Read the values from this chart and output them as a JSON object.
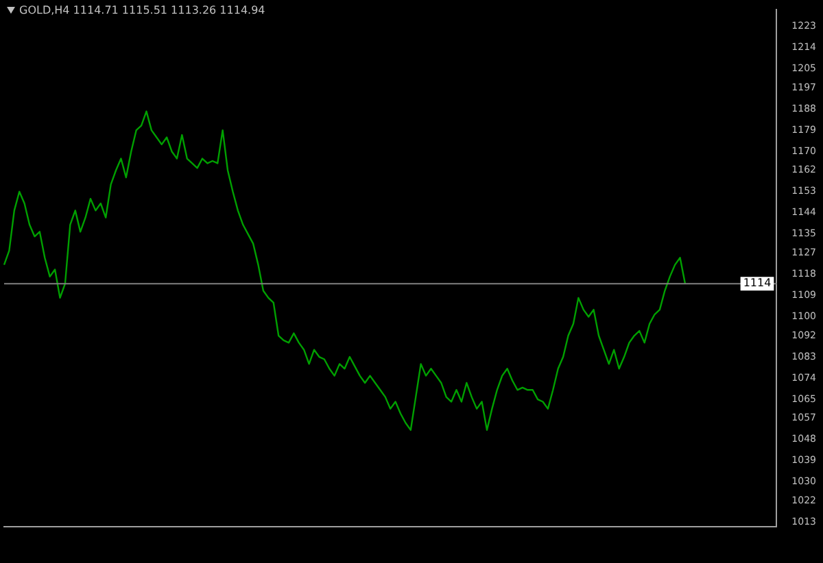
{
  "chart_data": {
    "type": "line",
    "title": "GOLD,H4 1114.71 1115.51 1113.26 1114.94",
    "categories": [
      null,
      null,
      null,
      null,
      null,
      null,
      null,
      null,
      null,
      null,
      null,
      null,
      null,
      null,
      null,
      null,
      null,
      null,
      null,
      null,
      null,
      null,
      null,
      null,
      null,
      null,
      null,
      null,
      null,
      null,
      null,
      null,
      null,
      null,
      null,
      null,
      null,
      null,
      null,
      null,
      null,
      null,
      null,
      null,
      null,
      null,
      null,
      null,
      null,
      null,
      null,
      null,
      null,
      null,
      null,
      null,
      null,
      null,
      null,
      null,
      null,
      null,
      null,
      null,
      null,
      null,
      null,
      null,
      null,
      null,
      null,
      null,
      null,
      null,
      null,
      null,
      null,
      null,
      null,
      null,
      null,
      null,
      null,
      null,
      null,
      null,
      null,
      null,
      null,
      null,
      null,
      null,
      null,
      null,
      null,
      null,
      null,
      null,
      null,
      null,
      null,
      null,
      null,
      null,
      null,
      null,
      null,
      null,
      null,
      null,
      null,
      null,
      null,
      null,
      null,
      null,
      null,
      null,
      null,
      null,
      null,
      null,
      null,
      null,
      null,
      null,
      null,
      null,
      null,
      null,
      null,
      null,
      null,
      null,
      null,
      null,
      null,
      null,
      null,
      null,
      null,
      null,
      null,
      null,
      null,
      null,
      null,
      null,
      null,
      null,
      null,
      null,
      null
    ],
    "series": [
      {
        "color": "#00a000",
        "values": [
          1122,
          1128,
          1145,
          1153,
          1148,
          1139,
          1134,
          1136,
          1125,
          1117,
          1120,
          1108,
          1114,
          1139,
          1145,
          1136,
          1142,
          1150,
          1145,
          1148,
          1142,
          1156,
          1162,
          1167,
          1159,
          1170,
          1179,
          1181,
          1187,
          1179,
          1176,
          1173,
          1176,
          1170,
          1167,
          1177,
          1167,
          1165,
          1163,
          1167,
          1165,
          1166,
          1165,
          1179,
          1162,
          1153,
          1145,
          1139,
          1135,
          1131,
          1122,
          1111,
          1108,
          1106,
          1092,
          1090,
          1089,
          1093,
          1089,
          1086,
          1080,
          1086,
          1083,
          1082,
          1078,
          1075,
          1080,
          1078,
          1083,
          1079,
          1075,
          1072,
          1075,
          1072,
          1069,
          1066,
          1061,
          1064,
          1059,
          1055,
          1052,
          1066,
          1080,
          1075,
          1078,
          1075,
          1072,
          1066,
          1064,
          1069,
          1064,
          1072,
          1066,
          1061,
          1064,
          1052,
          1061,
          1069,
          1075,
          1078,
          1073,
          1069,
          1070,
          1069,
          1069,
          1065,
          1064,
          1061,
          1069,
          1078,
          1083,
          1092,
          1097,
          1108,
          1103,
          1100,
          1103,
          1092,
          1086,
          1080,
          1086,
          1078,
          1083,
          1089,
          1092,
          1094,
          1089,
          1097,
          1101,
          1103,
          1111,
          1117,
          1122,
          1125,
          1114,
          null,
          null,
          null,
          null,
          null,
          null,
          null,
          null,
          null,
          null,
          null,
          null,
          null,
          null,
          null,
          null,
          null,
          null
        ]
      }
    ],
    "ylim": [
      1011,
      1230
    ],
    "yticks": [
      1013,
      1022,
      1030,
      1039,
      1048,
      1057,
      1065,
      1074,
      1083,
      1092,
      1100,
      1109,
      1118,
      1127,
      1135,
      1144,
      1153,
      1162,
      1170,
      1179,
      1188,
      1197,
      1205,
      1214,
      1223
    ],
    "ref_lines": [
      {
        "axis": "y",
        "value": 1114,
        "label": "1114",
        "color": "#808080"
      }
    ],
    "grid": false,
    "legend": false
  }
}
